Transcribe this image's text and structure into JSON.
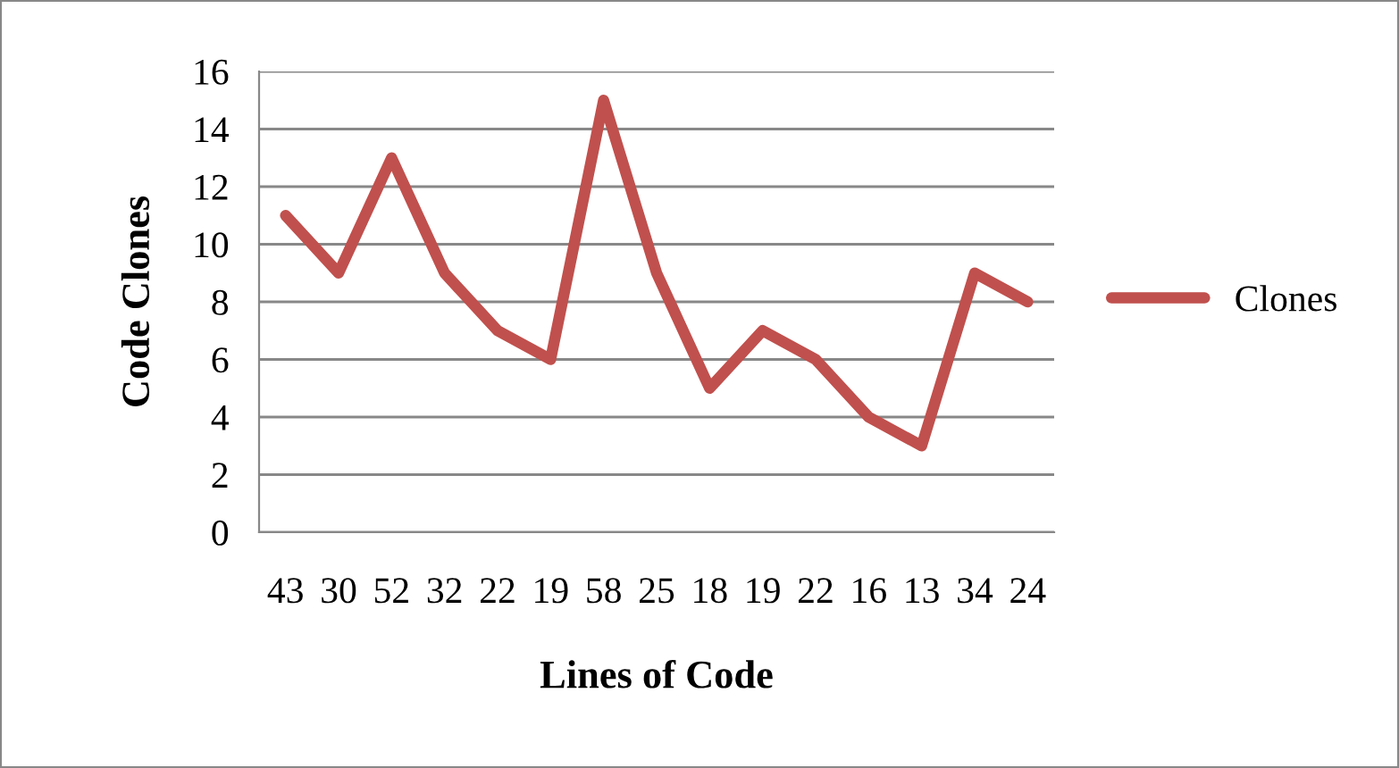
{
  "chart_data": {
    "type": "line",
    "xlabel": "Lines of Code",
    "ylabel": "Code Clones",
    "categories": [
      "43",
      "30",
      "52",
      "32",
      "22",
      "19",
      "58",
      "25",
      "18",
      "19",
      "22",
      "16",
      "13",
      "34",
      "24"
    ],
    "series": [
      {
        "name": "Clones",
        "color": "#c0504d",
        "values": [
          11,
          9,
          13,
          9,
          7,
          6,
          15,
          9,
          5,
          7,
          6,
          4,
          3,
          9,
          8
        ]
      }
    ],
    "ylim": [
      0,
      16
    ],
    "yticks": [
      0,
      2,
      4,
      6,
      8,
      10,
      12,
      14,
      16
    ],
    "grid": "y",
    "legend": "right",
    "marker": "none",
    "line_style": "solid"
  }
}
